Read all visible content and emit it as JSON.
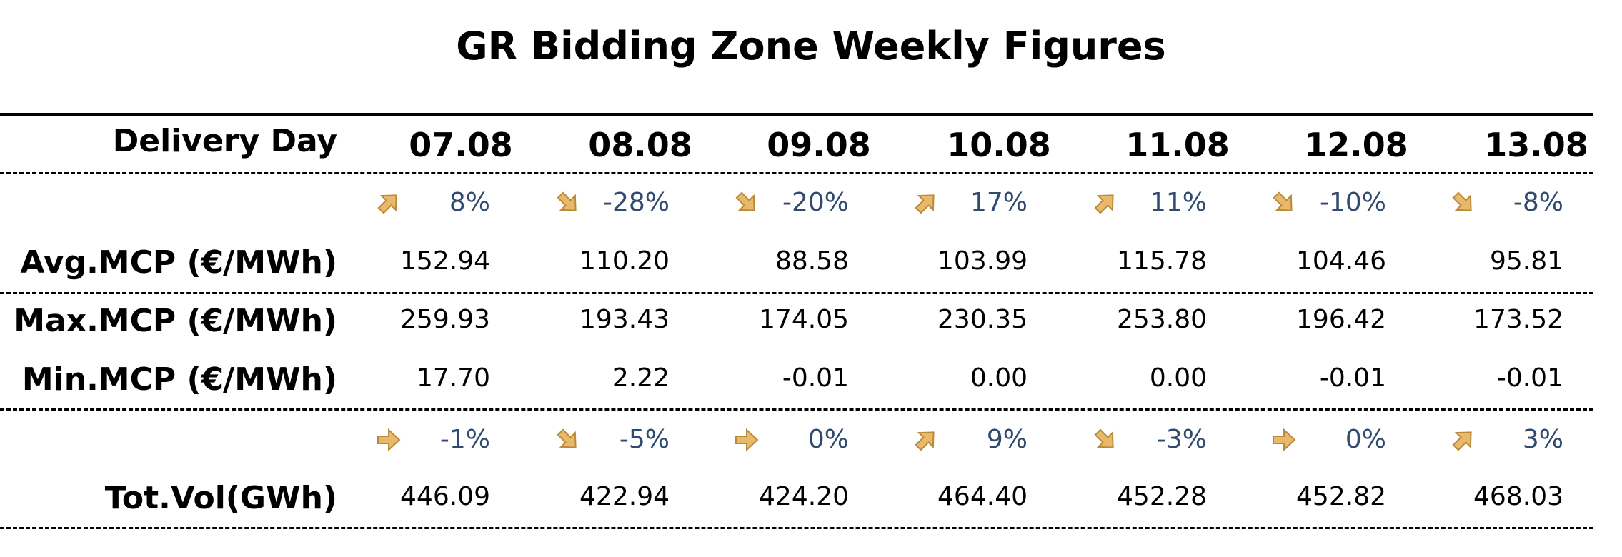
{
  "chart_data": {
    "type": "table",
    "title": "GR Bidding Zone Weekly Figures",
    "header_label": "Delivery Day",
    "days": [
      "07.08",
      "08.08",
      "09.08",
      "10.08",
      "11.08",
      "12.08",
      "13.08"
    ],
    "mcp_change": {
      "percents": [
        "8%",
        "-28%",
        "-20%",
        "17%",
        "11%",
        "-10%",
        "-8%"
      ],
      "arrows": [
        "up",
        "down",
        "down",
        "up",
        "up",
        "down",
        "down"
      ]
    },
    "avg_mcp": {
      "label": "Avg.MCP (€/MWh)",
      "values": [
        "152.94",
        "110.20",
        "88.58",
        "103.99",
        "115.78",
        "104.46",
        "95.81"
      ]
    },
    "max_mcp": {
      "label": "Max.MCP (€/MWh)",
      "values": [
        "259.93",
        "193.43",
        "174.05",
        "230.35",
        "253.80",
        "196.42",
        "173.52"
      ]
    },
    "min_mcp": {
      "label": "Min.MCP (€/MWh)",
      "values": [
        "17.70",
        "2.22",
        "-0.01",
        "0.00",
        "0.00",
        "-0.01",
        "-0.01"
      ]
    },
    "vol_change": {
      "percents": [
        "-1%",
        "-5%",
        "0%",
        "9%",
        "-3%",
        "0%",
        "3%"
      ],
      "arrows": [
        "right",
        "down",
        "right",
        "up",
        "down",
        "right",
        "up"
      ]
    },
    "tot_vol": {
      "label": "Tot.Vol(GWh)",
      "values": [
        "446.09",
        "422.94",
        "424.20",
        "464.40",
        "452.28",
        "452.82",
        "468.03"
      ]
    },
    "colors": {
      "arrow_fill": "#e8b96a",
      "arrow_stroke": "#b98a3a",
      "percent_text": "#2f4a6e"
    }
  }
}
